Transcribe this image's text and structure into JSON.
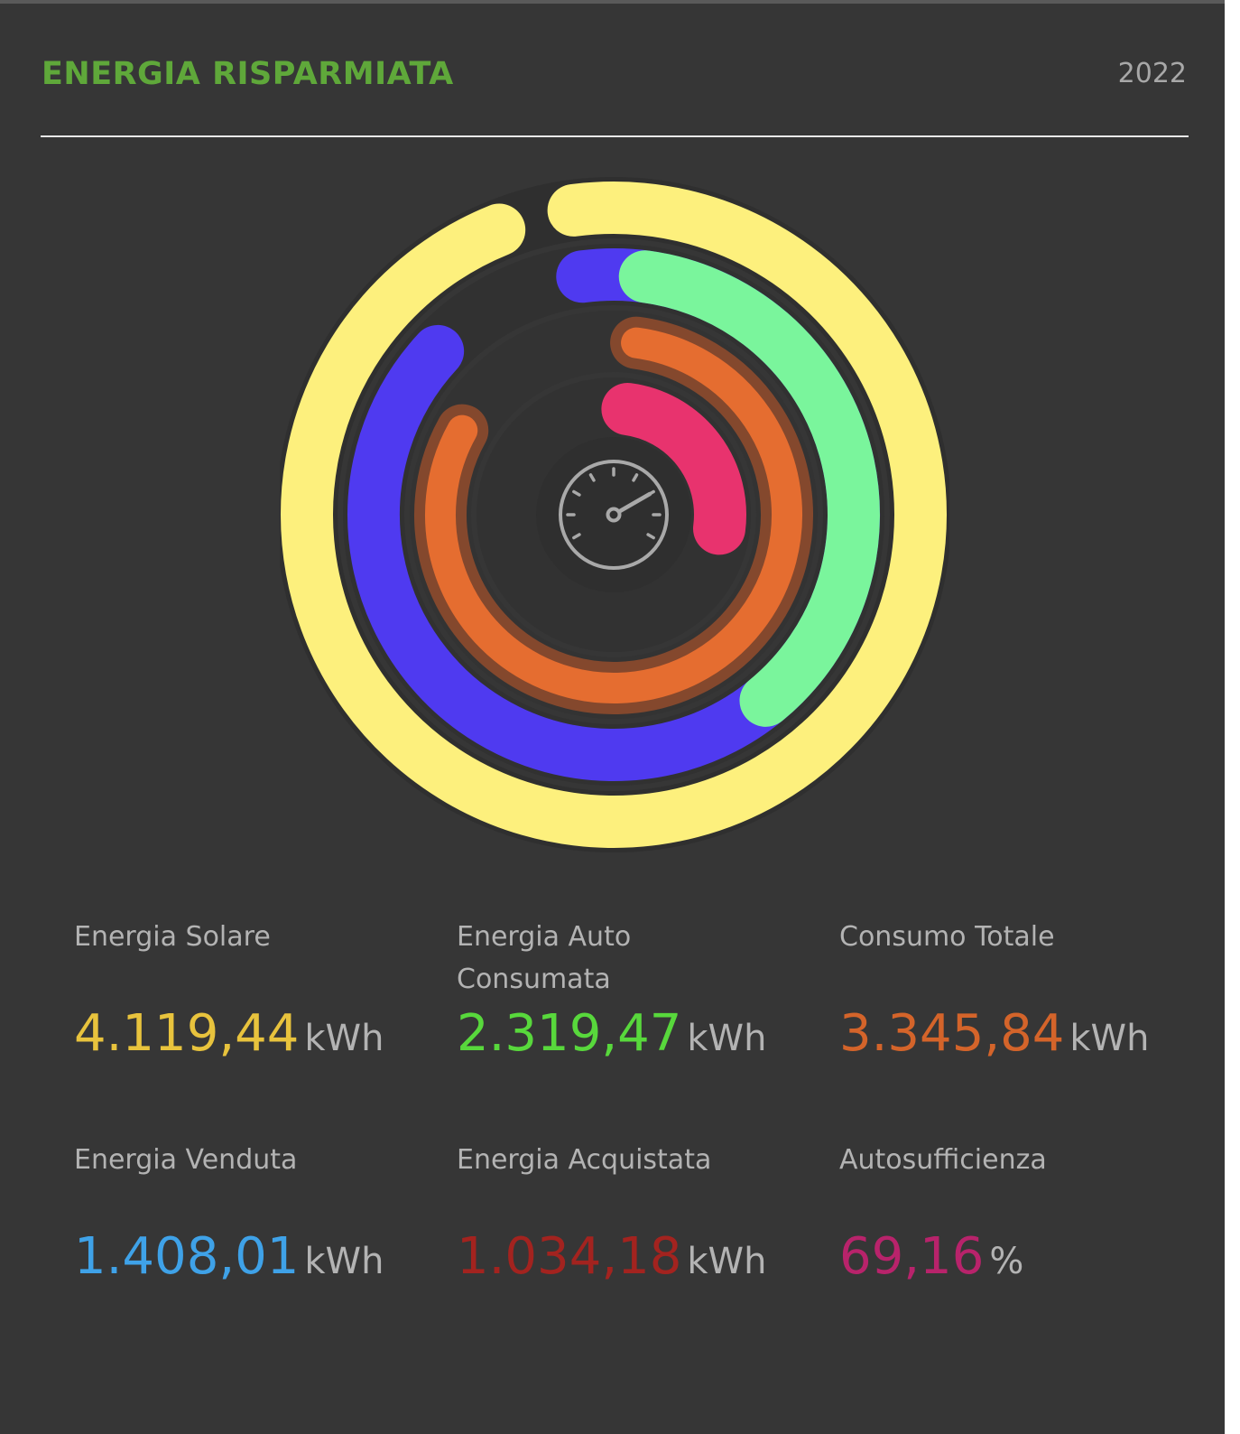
{
  "header": {
    "title": "ENERGIA RISPARMIATA",
    "year": "2022"
  },
  "gauge_icon": "speedometer-icon",
  "rings": [
    {
      "key": "energia_solare",
      "color": "#fdf07d",
      "fraction": 0.96
    },
    {
      "key": "energia_venduta",
      "color": "#4f3af0",
      "fraction": 0.89
    },
    {
      "key": "energia_auto_consumata",
      "color": "#7af59c",
      "fraction": 0.37
    },
    {
      "key": "consumo_totale",
      "color": "#e56d30",
      "fraction": 0.81
    },
    {
      "key": "autosufficienza",
      "color": "#e8336e",
      "fraction": 0.25
    }
  ],
  "stats": [
    {
      "label_line1": "Energia Solare",
      "label_line2": "",
      "value": "4.119,44",
      "unit": "kWh",
      "color": "#e8c33d"
    },
    {
      "label_line1": "Energia Auto",
      "label_line2": "Consumata",
      "value": "2.319,47",
      "unit": "kWh",
      "color": "#58d83c"
    },
    {
      "label_line1": "Consumo Totale",
      "label_line2": "",
      "value": "3.345,84",
      "unit": "kWh",
      "color": "#d4642a"
    },
    {
      "label_line1": "Energia Venduta",
      "label_line2": "",
      "value": "1.408,01",
      "unit": "kWh",
      "color": "#3fa2e8"
    },
    {
      "label_line1": "Energia Acquistata",
      "label_line2": "",
      "value": "1.034,18",
      "unit": "kWh",
      "color": "#a3231f"
    },
    {
      "label_line1": "Autosufficienza",
      "label_line2": "",
      "value": "69,16",
      "unit": "%",
      "color": "#b8236b"
    }
  ]
}
